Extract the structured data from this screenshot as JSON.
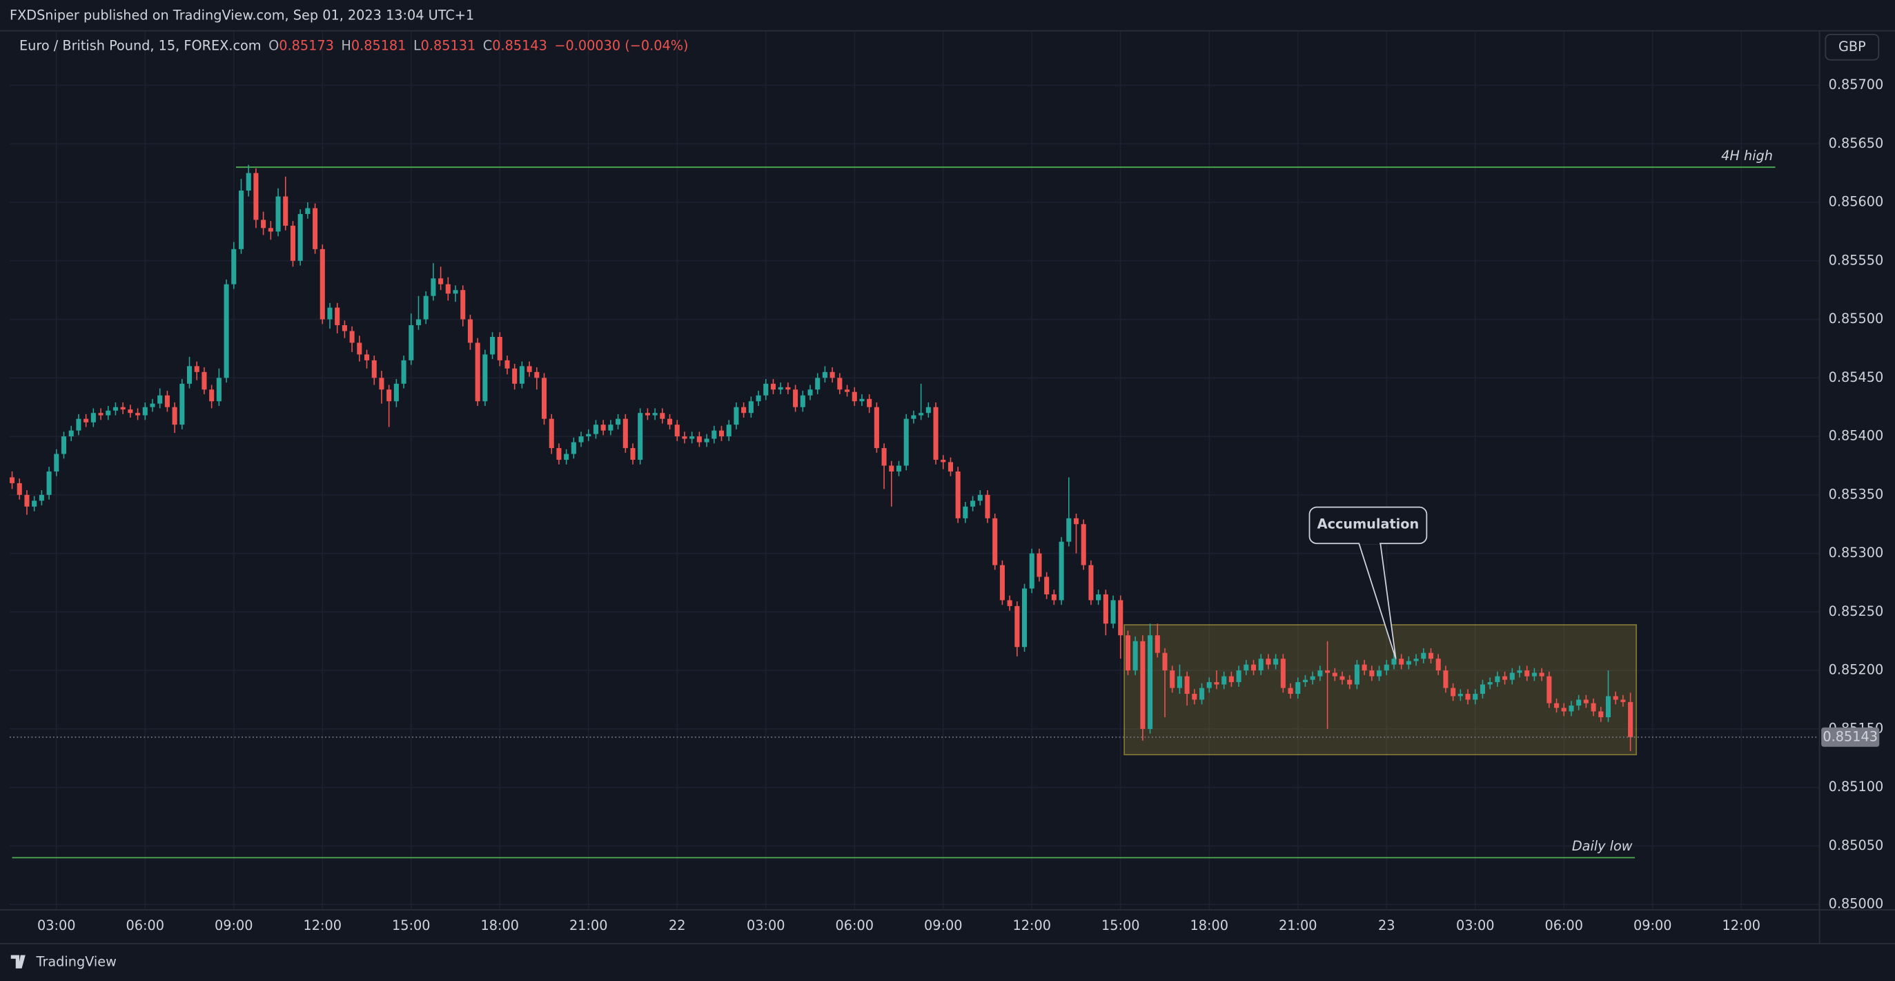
{
  "header": {
    "publisher": "FXDSniper published on TradingView.com, Sep 01, 2023 13:04 UTC+1"
  },
  "footer": {
    "brand": "TradingView"
  },
  "chart_data": {
    "type": "candlestick",
    "symbol": "Euro / British Pound, 15, FOREX.com",
    "ohlc_labels": [
      "O",
      "H",
      "L",
      "C"
    ],
    "change": "−0.00030 (−0.04%)",
    "currency": "GBP",
    "up_color": "#26a69a",
    "down_color": "#ef5350",
    "grid": true,
    "xlim": [
      -0.33,
      244.5
    ],
    "xticks": [
      {
        "value": 6,
        "label": "03:00"
      },
      {
        "value": 18,
        "label": "06:00"
      },
      {
        "value": 30,
        "label": "09:00"
      },
      {
        "value": 42,
        "label": "12:00"
      },
      {
        "value": 54,
        "label": "15:00"
      },
      {
        "value": 66,
        "label": "18:00"
      },
      {
        "value": 78,
        "label": "21:00"
      },
      {
        "value": 90,
        "label": "22"
      },
      {
        "value": 102,
        "label": "03:00"
      },
      {
        "value": 114,
        "label": "06:00"
      },
      {
        "value": 126,
        "label": "09:00"
      },
      {
        "value": 138,
        "label": "12:00"
      },
      {
        "value": 150,
        "label": "15:00"
      },
      {
        "value": 162,
        "label": "18:00"
      },
      {
        "value": 174,
        "label": "21:00"
      },
      {
        "value": 186,
        "label": "23"
      },
      {
        "value": 198,
        "label": "03:00"
      },
      {
        "value": 210,
        "label": "06:00"
      },
      {
        "value": 222,
        "label": "09:00"
      },
      {
        "value": 234,
        "label": "12:00"
      }
    ],
    "ylim": [
      0.84996,
      0.85746
    ],
    "yticks": [
      {
        "value": 0.85,
        "label": "0.85000"
      },
      {
        "value": 0.8505,
        "label": "0.85050"
      },
      {
        "value": 0.851,
        "label": "0.85100"
      },
      {
        "value": 0.8515,
        "label": "0.85150"
      },
      {
        "value": 0.852,
        "label": "0.85200"
      },
      {
        "value": 0.8525,
        "label": "0.85250"
      },
      {
        "value": 0.853,
        "label": "0.85300"
      },
      {
        "value": 0.8535,
        "label": "0.85350"
      },
      {
        "value": 0.854,
        "label": "0.85400"
      },
      {
        "value": 0.8545,
        "label": "0.85450"
      },
      {
        "value": 0.855,
        "label": "0.85500"
      },
      {
        "value": 0.8555,
        "label": "0.85550"
      },
      {
        "value": 0.856,
        "label": "0.85600"
      },
      {
        "value": 0.8565,
        "label": "0.85650"
      },
      {
        "value": 0.857,
        "label": "0.85700"
      }
    ],
    "levels": [
      {
        "label": "4H high",
        "value": 0.8563,
        "color": "#4caf50"
      },
      {
        "label": "Daily low",
        "value": 0.8504,
        "color": "#4caf50"
      }
    ],
    "zone": {
      "top": 0.85239,
      "bottom": 0.85128,
      "callout": "Accumulation"
    },
    "open": [
      0.85365,
      0.8536,
      0.8535,
      0.8534,
      0.85345,
      0.8535,
      0.8537,
      0.85385,
      0.854,
      0.85405,
      0.85415,
      0.85412,
      0.8542,
      0.85418,
      0.85422,
      0.85425,
      0.85423,
      0.8542,
      0.85418,
      0.85425,
      0.85428,
      0.85435,
      0.85425,
      0.8541,
      0.85445,
      0.8546,
      0.85455,
      0.8544,
      0.8543,
      0.8545,
      0.8553,
      0.8556,
      0.8561,
      0.85625,
      0.85585,
      0.85578,
      0.85575,
      0.85605,
      0.8558,
      0.8555,
      0.8559,
      0.85595,
      0.8556,
      0.855,
      0.8551,
      0.85495,
      0.8549,
      0.8548,
      0.8547,
      0.85465,
      0.8545,
      0.8544,
      0.8543,
      0.85445,
      0.85465,
      0.85495,
      0.855,
      0.8552,
      0.85535,
      0.8553,
      0.85522,
      0.85525,
      0.855,
      0.8548,
      0.8543,
      0.8547,
      0.85485,
      0.85465,
      0.85458,
      0.85445,
      0.8546,
      0.85455,
      0.8545,
      0.85415,
      0.8539,
      0.8538,
      0.85385,
      0.85395,
      0.854,
      0.85402,
      0.8541,
      0.85405,
      0.8541,
      0.85415,
      0.8539,
      0.8538,
      0.8542,
      0.85418,
      0.8542,
      0.85415,
      0.8541,
      0.854,
      0.85398,
      0.854,
      0.85395,
      0.85398,
      0.85405,
      0.854,
      0.8541,
      0.85425,
      0.8542,
      0.8543,
      0.85435,
      0.85445,
      0.8544,
      0.85442,
      0.8544,
      0.85425,
      0.85435,
      0.8544,
      0.8545,
      0.85455,
      0.8545,
      0.8544,
      0.85438,
      0.8543,
      0.85432,
      0.85425,
      0.8539,
      0.85375,
      0.8537,
      0.85375,
      0.85415,
      0.85418,
      0.8542,
      0.85425,
      0.8538,
      0.85378,
      0.8537,
      0.8533,
      0.8534,
      0.85345,
      0.8535,
      0.8533,
      0.8529,
      0.8526,
      0.85255,
      0.8522,
      0.8527,
      0.853,
      0.8528,
      0.85265,
      0.8526,
      0.8531,
      0.8533,
      0.85325,
      0.8529,
      0.8526,
      0.85265,
      0.8524,
      0.8526,
      0.8523,
      0.852,
      0.85225,
      0.8515,
      0.8523,
      0.85215,
      0.852,
      0.85185,
      0.85195,
      0.8518,
      0.85175,
      0.85185,
      0.8519,
      0.85188,
      0.85195,
      0.8519,
      0.852,
      0.85205,
      0.852,
      0.8521,
      0.85205,
      0.8521,
      0.85185,
      0.8518,
      0.8519,
      0.85192,
      0.85195,
      0.852,
      0.85198,
      0.85195,
      0.85192,
      0.85188,
      0.85205,
      0.852,
      0.85195,
      0.852,
      0.85205,
      0.8521,
      0.85205,
      0.85208,
      0.8521,
      0.85215,
      0.8521,
      0.852,
      0.85185,
      0.85178,
      0.8518,
      0.85175,
      0.8518,
      0.85188,
      0.8519,
      0.85195,
      0.85192,
      0.85198,
      0.852,
      0.85195,
      0.85198,
      0.85195,
      0.85172,
      0.85168,
      0.85165,
      0.8517,
      0.85175,
      0.85172,
      0.85165,
      0.8516,
      0.85178,
      0.85175,
      0.85173
    ],
    "high": [
      0.8537,
      0.85364,
      0.85354,
      0.85349,
      0.85354,
      0.85374,
      0.85389,
      0.85404,
      0.85409,
      0.85419,
      0.85419,
      0.85424,
      0.85424,
      0.85426,
      0.85429,
      0.85429,
      0.85427,
      0.85424,
      0.85429,
      0.85432,
      0.85441,
      0.85439,
      0.85429,
      0.85449,
      0.85468,
      0.85464,
      0.85459,
      0.85444,
      0.85458,
      0.85534,
      0.85566,
      0.8562,
      0.85632,
      0.85629,
      0.85592,
      0.85584,
      0.85612,
      0.85622,
      0.85584,
      0.85594,
      0.856,
      0.85599,
      0.85564,
      0.85514,
      0.85514,
      0.85499,
      0.85494,
      0.85486,
      0.85474,
      0.85469,
      0.85456,
      0.85444,
      0.85449,
      0.85469,
      0.85505,
      0.8552,
      0.85524,
      0.85548,
      0.85545,
      0.85536,
      0.85529,
      0.85529,
      0.85504,
      0.85484,
      0.85474,
      0.85489,
      0.85489,
      0.85469,
      0.85462,
      0.85464,
      0.85464,
      0.85459,
      0.85454,
      0.85419,
      0.85394,
      0.85389,
      0.85399,
      0.85404,
      0.85406,
      0.85414,
      0.85414,
      0.85414,
      0.85419,
      0.85419,
      0.85394,
      0.85424,
      0.85424,
      0.85424,
      0.85424,
      0.85419,
      0.85414,
      0.85404,
      0.85404,
      0.85404,
      0.85402,
      0.85409,
      0.85409,
      0.85414,
      0.85429,
      0.85429,
      0.85434,
      0.85439,
      0.85449,
      0.85449,
      0.85446,
      0.85446,
      0.85444,
      0.85439,
      0.85444,
      0.85454,
      0.8546,
      0.85459,
      0.85454,
      0.85444,
      0.85442,
      0.85436,
      0.85436,
      0.85429,
      0.85394,
      0.85379,
      0.85379,
      0.85419,
      0.85422,
      0.85445,
      0.85429,
      0.85429,
      0.85384,
      0.85382,
      0.85374,
      0.85344,
      0.85349,
      0.85354,
      0.85354,
      0.85334,
      0.85294,
      0.85264,
      0.85259,
      0.85274,
      0.85304,
      0.85304,
      0.85284,
      0.85269,
      0.85314,
      0.85365,
      0.85334,
      0.85329,
      0.85294,
      0.85269,
      0.85269,
      0.85264,
      0.85264,
      0.85234,
      0.85229,
      0.8523,
      0.8524,
      0.8524,
      0.85219,
      0.85204,
      0.85205,
      0.85199,
      0.85184,
      0.85189,
      0.85194,
      0.852,
      0.85199,
      0.85199,
      0.85204,
      0.85209,
      0.85209,
      0.85214,
      0.85214,
      0.85214,
      0.85214,
      0.85189,
      0.85194,
      0.85196,
      0.85199,
      0.85204,
      0.85225,
      0.85202,
      0.85199,
      0.85196,
      0.85209,
      0.85209,
      0.85204,
      0.85204,
      0.85209,
      0.85214,
      0.85214,
      0.85212,
      0.85214,
      0.85219,
      0.85219,
      0.85214,
      0.85204,
      0.85189,
      0.85184,
      0.85184,
      0.85184,
      0.85192,
      0.85194,
      0.85199,
      0.85199,
      0.85202,
      0.85204,
      0.85204,
      0.85202,
      0.85202,
      0.85199,
      0.85176,
      0.85172,
      0.85174,
      0.85179,
      0.85179,
      0.85176,
      0.85169,
      0.852,
      0.85182,
      0.85179,
      0.85181
    ],
    "low": [
      0.85355,
      0.85346,
      0.85333,
      0.85336,
      0.85341,
      0.85346,
      0.85366,
      0.85381,
      0.85396,
      0.85401,
      0.85408,
      0.85408,
      0.85414,
      0.85414,
      0.85418,
      0.85419,
      0.85416,
      0.85414,
      0.85414,
      0.85421,
      0.85424,
      0.85421,
      0.85403,
      0.85406,
      0.85441,
      0.85448,
      0.85436,
      0.85424,
      0.85426,
      0.85446,
      0.85526,
      0.85556,
      0.85605,
      0.85578,
      0.85572,
      0.85568,
      0.85571,
      0.85576,
      0.85545,
      0.85546,
      0.85586,
      0.85556,
      0.85496,
      0.85492,
      0.85488,
      0.85484,
      0.85472,
      0.85464,
      0.85458,
      0.85444,
      0.85428,
      0.85408,
      0.85425,
      0.85441,
      0.85461,
      0.85491,
      0.85496,
      0.85516,
      0.85525,
      0.85516,
      0.85515,
      0.85494,
      0.85474,
      0.85426,
      0.85426,
      0.85466,
      0.8546,
      0.85453,
      0.8544,
      0.85441,
      0.85451,
      0.8544,
      0.8541,
      0.85385,
      0.85376,
      0.85376,
      0.85381,
      0.85391,
      0.85396,
      0.85398,
      0.85401,
      0.85401,
      0.85406,
      0.85386,
      0.85376,
      0.85376,
      0.85414,
      0.85414,
      0.85411,
      0.85406,
      0.85396,
      0.85394,
      0.85394,
      0.85391,
      0.85391,
      0.85394,
      0.85396,
      0.85396,
      0.85406,
      0.85416,
      0.85416,
      0.85426,
      0.85431,
      0.85436,
      0.85436,
      0.85436,
      0.85421,
      0.85421,
      0.85431,
      0.85436,
      0.85446,
      0.85446,
      0.85436,
      0.85434,
      0.85426,
      0.85426,
      0.8542,
      0.85386,
      0.85355,
      0.8534,
      0.85366,
      0.85371,
      0.85411,
      0.85414,
      0.85416,
      0.85376,
      0.85372,
      0.85366,
      0.85326,
      0.85326,
      0.85336,
      0.85341,
      0.85326,
      0.85286,
      0.85256,
      0.85251,
      0.85212,
      0.85216,
      0.85266,
      0.85276,
      0.85261,
      0.85256,
      0.85256,
      0.85306,
      0.853,
      0.85286,
      0.85256,
      0.85256,
      0.8523,
      0.85236,
      0.8521,
      0.85196,
      0.85196,
      0.8514,
      0.85146,
      0.85211,
      0.8516,
      0.85181,
      0.8518,
      0.8517,
      0.85171,
      0.85171,
      0.85181,
      0.85184,
      0.85184,
      0.85186,
      0.85186,
      0.85196,
      0.85196,
      0.85196,
      0.85201,
      0.85201,
      0.85181,
      0.85176,
      0.85176,
      0.85186,
      0.85188,
      0.85191,
      0.8515,
      0.85191,
      0.85188,
      0.85184,
      0.85184,
      0.85196,
      0.85191,
      0.85191,
      0.85196,
      0.85201,
      0.85201,
      0.85201,
      0.85204,
      0.85206,
      0.85206,
      0.85196,
      0.85181,
      0.85174,
      0.85174,
      0.85171,
      0.85171,
      0.85176,
      0.85184,
      0.85186,
      0.85188,
      0.85188,
      0.85194,
      0.85191,
      0.85191,
      0.85191,
      0.85168,
      0.85164,
      0.85161,
      0.85161,
      0.85166,
      0.85168,
      0.85161,
      0.85156,
      0.85156,
      0.85171,
      0.85169,
      0.85131
    ],
    "close": [
      0.8536,
      0.8535,
      0.8534,
      0.85345,
      0.8535,
      0.8537,
      0.85385,
      0.854,
      0.85405,
      0.85415,
      0.85412,
      0.8542,
      0.85418,
      0.85422,
      0.85425,
      0.85423,
      0.8542,
      0.85418,
      0.85425,
      0.85428,
      0.85435,
      0.85425,
      0.8541,
      0.85445,
      0.8546,
      0.85455,
      0.8544,
      0.8543,
      0.8545,
      0.8553,
      0.8556,
      0.8561,
      0.85625,
      0.85585,
      0.85578,
      0.85575,
      0.85605,
      0.8558,
      0.8555,
      0.8559,
      0.85595,
      0.8556,
      0.855,
      0.8551,
      0.85495,
      0.8549,
      0.8548,
      0.8547,
      0.85465,
      0.8545,
      0.8544,
      0.8543,
      0.85445,
      0.85465,
      0.85495,
      0.855,
      0.8552,
      0.85535,
      0.8553,
      0.85522,
      0.85525,
      0.855,
      0.8548,
      0.8543,
      0.8547,
      0.85485,
      0.85465,
      0.85458,
      0.85445,
      0.8546,
      0.85455,
      0.8545,
      0.85415,
      0.8539,
      0.8538,
      0.85385,
      0.85395,
      0.854,
      0.85402,
      0.8541,
      0.85405,
      0.8541,
      0.85415,
      0.8539,
      0.8538,
      0.8542,
      0.85418,
      0.8542,
      0.85415,
      0.8541,
      0.854,
      0.85398,
      0.854,
      0.85395,
      0.85398,
      0.85405,
      0.854,
      0.8541,
      0.85425,
      0.8542,
      0.8543,
      0.85435,
      0.85445,
      0.8544,
      0.85442,
      0.8544,
      0.85425,
      0.85435,
      0.8544,
      0.8545,
      0.85455,
      0.8545,
      0.8544,
      0.85438,
      0.8543,
      0.85432,
      0.85425,
      0.8539,
      0.85375,
      0.8537,
      0.85375,
      0.85415,
      0.85418,
      0.8542,
      0.85425,
      0.8538,
      0.85378,
      0.8537,
      0.8533,
      0.8534,
      0.85345,
      0.8535,
      0.8533,
      0.8529,
      0.8526,
      0.85255,
      0.8522,
      0.8527,
      0.853,
      0.8528,
      0.85265,
      0.8526,
      0.8531,
      0.8533,
      0.85325,
      0.8529,
      0.8526,
      0.85265,
      0.8524,
      0.8526,
      0.8523,
      0.852,
      0.85225,
      0.8515,
      0.8523,
      0.85215,
      0.852,
      0.85185,
      0.85195,
      0.8518,
      0.85175,
      0.85185,
      0.8519,
      0.85188,
      0.85195,
      0.8519,
      0.852,
      0.85205,
      0.852,
      0.8521,
      0.85205,
      0.8521,
      0.85185,
      0.8518,
      0.8519,
      0.85192,
      0.85195,
      0.852,
      0.85198,
      0.85195,
      0.85192,
      0.85188,
      0.85205,
      0.852,
      0.85195,
      0.852,
      0.85205,
      0.8521,
      0.85205,
      0.85208,
      0.8521,
      0.85215,
      0.8521,
      0.852,
      0.85185,
      0.85178,
      0.8518,
      0.85175,
      0.8518,
      0.85188,
      0.8519,
      0.85195,
      0.85192,
      0.85198,
      0.852,
      0.85195,
      0.85198,
      0.85195,
      0.85172,
      0.85168,
      0.85165,
      0.8517,
      0.85175,
      0.85172,
      0.85165,
      0.8516,
      0.85178,
      0.85175,
      0.85173,
      0.85143
    ]
  }
}
